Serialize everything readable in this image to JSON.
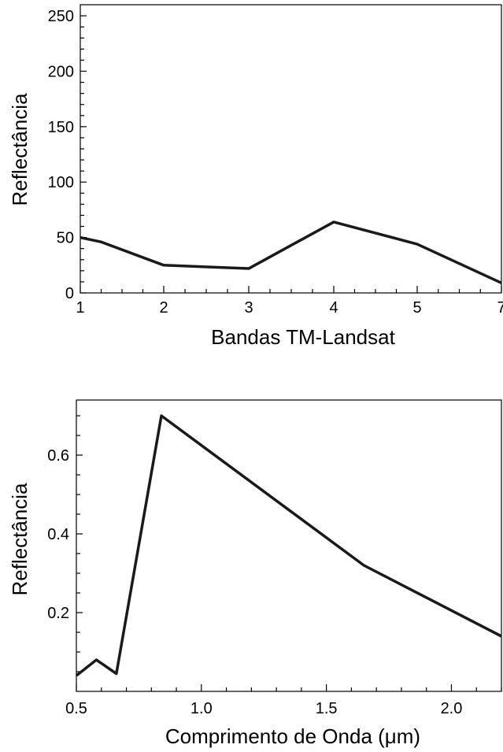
{
  "chart_data": [
    {
      "type": "line",
      "xlabel": "Bandas TM-Landsat",
      "ylabel": "Reflectância",
      "x_ticks": [
        1,
        2,
        3,
        4,
        5,
        7
      ],
      "y_ticks": [
        0,
        50,
        100,
        150,
        200,
        250
      ],
      "xlim": [
        1,
        7
      ],
      "ylim": [
        0,
        260
      ],
      "grid": false,
      "series": [
        {
          "x": [
            1,
            1.25,
            2,
            3,
            4,
            5,
            7
          ],
          "y": [
            50,
            46,
            25,
            22,
            64,
            44,
            9
          ]
        }
      ]
    },
    {
      "type": "line",
      "xlabel": "Comprimento de Onda (μm)",
      "ylabel": "Reflectância",
      "x_ticks": [
        "0.5",
        "1.0",
        "1.5",
        "2.0"
      ],
      "y_ticks": [
        "0.2",
        "0.4",
        "0.6"
      ],
      "xlim": [
        0.5,
        2.2
      ],
      "ylim": [
        0,
        0.74
      ],
      "grid": false,
      "series": [
        {
          "x": [
            0.49,
            0.58,
            0.66,
            0.84,
            1.65,
            2.2
          ],
          "y": [
            0.04,
            0.08,
            0.045,
            0.7,
            0.32,
            0.14
          ]
        }
      ]
    }
  ]
}
